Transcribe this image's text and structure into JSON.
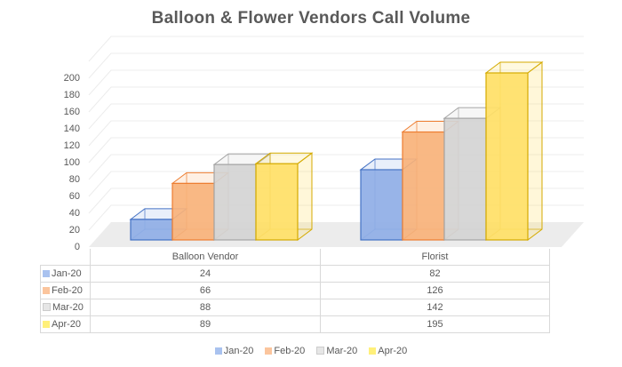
{
  "chart_data": {
    "type": "bar",
    "subtype": "3d-clustered-column-with-data-table",
    "title": "Balloon & Flower Vendors Call Volume",
    "categories": [
      "Balloon Vendor",
      "Florist"
    ],
    "series": [
      {
        "name": "Jan-20",
        "values": [
          24,
          82
        ],
        "color": "#8faee6",
        "edge": "#4472c4"
      },
      {
        "name": "Feb-20",
        "values": [
          66,
          126
        ],
        "color": "#f9b27a",
        "edge": "#ed7d31"
      },
      {
        "name": "Mar-20",
        "values": [
          88,
          142
        ],
        "color": "#d4d4d4",
        "edge": "#a5a5a5"
      },
      {
        "name": "Apr-20",
        "values": [
          89,
          195
        ],
        "color": "#ffe066",
        "edge": "#d4aa00"
      }
    ],
    "xlabel": "",
    "ylabel": "",
    "ylim": [
      0,
      200
    ],
    "yticks": [
      "0",
      "20",
      "40",
      "60",
      "80",
      "100",
      "120",
      "140",
      "160",
      "180",
      "200"
    ],
    "grid": true,
    "legend_position": "bottom",
    "data_table": true
  },
  "table": {
    "headers": [
      "Balloon Vendor",
      "Florist"
    ],
    "rows": [
      {
        "label": "Jan-20",
        "values": [
          "24",
          "82"
        ]
      },
      {
        "label": "Feb-20",
        "values": [
          "66",
          "126"
        ]
      },
      {
        "label": "Mar-20",
        "values": [
          "88",
          "142"
        ]
      },
      {
        "label": "Apr-20",
        "values": [
          "89",
          "195"
        ]
      }
    ]
  },
  "legend": [
    "Jan-20",
    "Feb-20",
    "Mar-20",
    "Apr-20"
  ]
}
